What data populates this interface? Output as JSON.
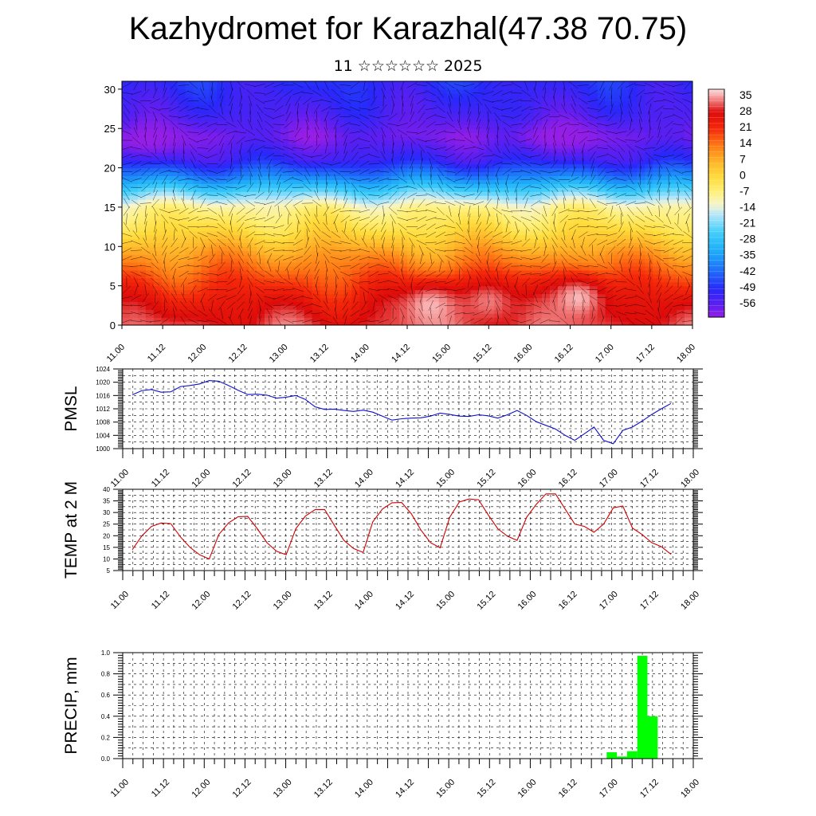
{
  "header": {
    "title": "Kazhydromet for Karazhal(47.38 70.75)",
    "subtitle": "11 ☆☆☆☆☆☆ 2025"
  },
  "chart_data": [
    {
      "type": "heatmap",
      "xlabel": "",
      "ylabel": "",
      "x_tick_labels": [
        "11.00",
        "11.12",
        "12.00",
        "12.12",
        "13.00",
        "13.12",
        "14.00",
        "14.12",
        "15.00",
        "15.12",
        "16.00",
        "16.12",
        "17.00",
        "17.12",
        "18.00"
      ],
      "y_tick_labels": [
        "0",
        "5",
        "10",
        "15",
        "20",
        "25",
        "30"
      ],
      "xlim": [
        0,
        14
      ],
      "ylim": [
        0,
        31
      ],
      "colorbar": {
        "labels": [
          "35",
          "28",
          "21",
          "14",
          "7",
          "0",
          "-7",
          "-14",
          "-21",
          "-28",
          "-35",
          "-42",
          "-49",
          "-56"
        ],
        "range": [
          -60,
          38
        ]
      },
      "layers": [
        {
          "level": 0,
          "value": 30
        },
        {
          "level": 3,
          "value": 25
        },
        {
          "level": 6,
          "value": 18
        },
        {
          "level": 9,
          "value": 10
        },
        {
          "level": 12,
          "value": 0
        },
        {
          "level": 15,
          "value": -8
        },
        {
          "level": 17,
          "value": -22
        },
        {
          "level": 19,
          "value": -38
        },
        {
          "level": 21,
          "value": -50
        },
        {
          "level": 24,
          "value": -57
        },
        {
          "level": 27,
          "value": -52
        },
        {
          "level": 31,
          "value": -48
        }
      ],
      "warm_spots": [
        {
          "x": 7.6,
          "level": 2.5,
          "value": 36
        },
        {
          "x": 9.0,
          "level": 3,
          "value": 33
        },
        {
          "x": 11.2,
          "level": 3.5,
          "value": 36
        }
      ],
      "cold_spots": [
        {
          "x": 10.7,
          "level": 24,
          "value": -60
        },
        {
          "x": 0.6,
          "level": 23.5,
          "value": -60
        }
      ],
      "notes_wind_barbs": "vectors-overlay"
    },
    {
      "type": "line",
      "ylabel": "PMSL",
      "color": "#1010d0",
      "x_tick_labels": [
        "11.00",
        "11.12",
        "12.00",
        "12.12",
        "13.00",
        "13.12",
        "14.00",
        "14.12",
        "15.00",
        "15.12",
        "16.00",
        "16.12",
        "17.00",
        "17.12",
        "18.00"
      ],
      "y_tick_labels": [
        "1000",
        "1004",
        "1008",
        "1012",
        "1016",
        "1020",
        "1024"
      ],
      "ylim": [
        1000,
        1024
      ],
      "x": [
        0,
        0.25,
        0.5,
        0.75,
        1,
        1.25,
        1.5,
        1.75,
        2,
        2.25,
        2.5,
        2.75,
        3,
        3.25,
        3.5,
        3.75,
        4,
        4.25,
        4.5,
        4.75,
        5,
        5.25,
        5.5,
        5.75,
        6,
        6.25,
        6.5,
        6.75,
        7,
        7.25,
        7.5,
        7.75,
        8,
        8.25,
        8.5,
        8.75,
        9,
        9.25,
        9.5,
        9.75,
        10,
        10.25,
        10.5,
        10.75,
        11,
        11.25,
        11.5,
        11.75,
        12,
        12.25,
        12.5,
        12.75,
        13,
        13.25,
        13.5,
        13.75,
        14
      ],
      "values": [
        1016.2,
        1017.5,
        1017.8,
        1017.0,
        1017.1,
        1018.7,
        1019.0,
        1019.5,
        1020.5,
        1020.3,
        1019.0,
        1017.6,
        1016.3,
        1016.4,
        1016.1,
        1015.2,
        1015.5,
        1016.0,
        1014.8,
        1012.6,
        1011.8,
        1011.9,
        1011.5,
        1011.2,
        1011.6,
        1011.0,
        1009.8,
        1008.6,
        1009.0,
        1009.2,
        1009.3,
        1009.8,
        1010.7,
        1010.3,
        1009.8,
        1009.7,
        1010.2,
        1009.9,
        1009.2,
        1010.2,
        1011.5,
        1010.0,
        1008.1,
        1007.0,
        1005.9,
        1004.0,
        1002.5,
        1004.5,
        1006.5,
        1002.5,
        1001.5,
        1005.5,
        1006.5,
        1008.3,
        1010.3,
        1012.0,
        1013.6
      ]
    },
    {
      "type": "line",
      "ylabel": "TEMP at 2 M",
      "color": "#d00000",
      "x_tick_labels": [
        "11.00",
        "11.12",
        "12.00",
        "12.12",
        "13.00",
        "13.12",
        "14.00",
        "14.12",
        "15.00",
        "15.12",
        "16.00",
        "16.12",
        "17.00",
        "17.12",
        "18.00"
      ],
      "y_tick_labels": [
        "5",
        "10",
        "15",
        "20",
        "25",
        "30",
        "35",
        "40"
      ],
      "ylim": [
        5,
        40
      ],
      "x": [
        0,
        0.25,
        0.5,
        0.75,
        1,
        1.25,
        1.5,
        1.75,
        2,
        2.25,
        2.5,
        2.75,
        3,
        3.25,
        3.5,
        3.75,
        4,
        4.25,
        4.5,
        4.75,
        5,
        5.25,
        5.5,
        5.75,
        6,
        6.25,
        6.5,
        6.75,
        7,
        7.25,
        7.5,
        7.75,
        8,
        8.25,
        8.5,
        8.75,
        9,
        9.25,
        9.5,
        9.75,
        10,
        10.25,
        10.5,
        10.75,
        11,
        11.25,
        11.5,
        11.75,
        12,
        12.25,
        12.5,
        12.75,
        13,
        13.25,
        13.5,
        13.75,
        14
      ],
      "values": [
        14,
        20,
        24,
        25.5,
        25.2,
        19.5,
        15,
        11.8,
        10,
        20.5,
        25.5,
        28.2,
        28.3,
        23,
        17,
        13.3,
        11.8,
        23,
        28.5,
        31.2,
        31.3,
        24.5,
        18,
        14.5,
        12.8,
        26,
        31.5,
        34.2,
        34.3,
        29.5,
        22.5,
        17,
        14.8,
        28,
        34.5,
        35.8,
        35.5,
        29,
        23,
        19.8,
        18,
        28,
        33.5,
        38,
        38,
        31.5,
        25,
        24,
        21.5,
        25,
        32,
        32.8,
        23.3,
        20.5,
        17,
        15.3,
        12
      ]
    },
    {
      "type": "bar",
      "ylabel": "PRECIP, mm",
      "color": "#00ff00",
      "x_tick_labels": [
        "11.00",
        "11.12",
        "12.00",
        "12.12",
        "13.00",
        "13.12",
        "14.00",
        "14.12",
        "15.00",
        "15.12",
        "16.00",
        "16.12",
        "17.00",
        "17.12",
        "18.00"
      ],
      "y_tick_labels": [
        "0.0",
        "0.2",
        "0.4",
        "0.6",
        "0.8",
        "1.0"
      ],
      "ylim": [
        0,
        1.0
      ],
      "x": [
        12,
        12.25,
        12.5,
        12.75,
        13
      ],
      "values": [
        0.06,
        0.02,
        0.07,
        0.97,
        0.4
      ]
    }
  ]
}
